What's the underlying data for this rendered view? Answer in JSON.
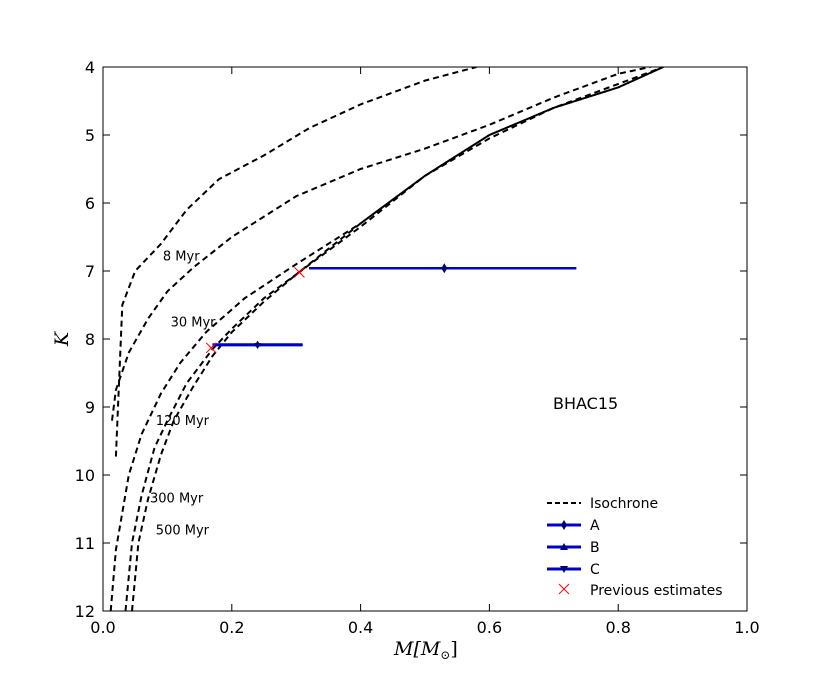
{
  "chart_data": {
    "type": "line",
    "xlabel": "M[M_⊙]",
    "xlabel_main": "M",
    "xlabel_sub": "[M",
    "xlabel_sun": "⊙",
    "xlabel_close": "]",
    "ylabel": "K",
    "xlim": [
      0.0,
      1.0
    ],
    "ylim": [
      12,
      4
    ],
    "y_inverted": true,
    "x_ticks": [
      0.0,
      0.2,
      0.4,
      0.6,
      0.8,
      1.0
    ],
    "x_tick_labels": [
      "0.0",
      "0.2",
      "0.4",
      "0.6",
      "0.8",
      "1.0"
    ],
    "y_ticks": [
      4,
      5,
      6,
      7,
      8,
      9,
      10,
      11,
      12
    ],
    "y_tick_labels": [
      "4",
      "5",
      "6",
      "7",
      "8",
      "9",
      "10",
      "11",
      "12"
    ],
    "model_label": "BHAC15",
    "isochrones": [
      {
        "name": "8 Myr",
        "label_at": [
          0.093,
          6.77
        ],
        "x": [
          0.02,
          0.03,
          0.05,
          0.09,
          0.13,
          0.18,
          0.25,
          0.32,
          0.4,
          0.5,
          0.58
        ],
        "y": [
          9.73,
          7.5,
          7.0,
          6.6,
          6.1,
          5.65,
          5.3,
          4.9,
          4.55,
          4.2,
          4.0
        ]
      },
      {
        "name": "30 Myr",
        "label_at": [
          0.105,
          7.74
        ],
        "x": [
          0.014,
          0.02,
          0.04,
          0.07,
          0.1,
          0.14,
          0.2,
          0.3,
          0.4,
          0.5,
          0.6,
          0.7,
          0.8,
          0.85
        ],
        "y": [
          9.2,
          8.75,
          8.2,
          7.7,
          7.3,
          6.95,
          6.5,
          5.9,
          5.5,
          5.2,
          4.85,
          4.45,
          4.1,
          4.0
        ]
      },
      {
        "name": "120 Myr",
        "label_at": [
          0.082,
          9.19
        ],
        "x": [
          0.012,
          0.02,
          0.04,
          0.06,
          0.09,
          0.12,
          0.16,
          0.22,
          0.3,
          0.4,
          0.5,
          0.6,
          0.7,
          0.8,
          0.87
        ],
        "y": [
          12.0,
          11.1,
          10.0,
          9.4,
          8.8,
          8.35,
          7.9,
          7.4,
          6.9,
          6.3,
          5.6,
          5.05,
          4.6,
          4.25,
          4.0
        ]
      },
      {
        "name": "300 Myr",
        "label_at": [
          0.073,
          10.33
        ],
        "x": [
          0.035,
          0.045,
          0.06,
          0.08,
          0.1,
          0.13,
          0.17,
          0.2,
          0.25,
          0.3,
          0.4,
          0.5,
          0.6,
          0.7,
          0.8,
          0.87
        ],
        "y": [
          12.0,
          11.0,
          10.3,
          9.6,
          9.2,
          8.65,
          8.15,
          7.85,
          7.4,
          7.05,
          6.3,
          5.6,
          5.0,
          4.6,
          4.3,
          4.0
        ]
      },
      {
        "name": "500 Myr",
        "label_at": [
          0.082,
          10.8
        ],
        "x": [
          0.045,
          0.055,
          0.07,
          0.09,
          0.11,
          0.14,
          0.17,
          0.2,
          0.25,
          0.3,
          0.4,
          0.5,
          0.6,
          0.7,
          0.8,
          0.87
        ],
        "y": [
          12.0,
          11.0,
          10.35,
          9.7,
          9.2,
          8.7,
          8.25,
          7.9,
          7.45,
          7.05,
          6.35,
          5.6,
          5.0,
          4.6,
          4.3,
          4.0
        ]
      }
    ],
    "measurements": [
      {
        "name": "A",
        "marker": "diamond",
        "x": 0.53,
        "y": 6.96,
        "xmin": 0.32,
        "xmax": 0.735
      },
      {
        "name": "B",
        "marker": "triangle-up",
        "x": 0.24,
        "y": 8.08,
        "xmin": 0.17,
        "xmax": 0.31
      },
      {
        "name": "C",
        "marker": "triangle-down",
        "x": 0.24,
        "y": 8.09,
        "xmin": 0.17,
        "xmax": 0.31
      }
    ],
    "previous_estimates": [
      {
        "x": 0.305,
        "y": 7.02
      },
      {
        "x": 0.168,
        "y": 8.13
      }
    ],
    "legend": {
      "position": "lower-right",
      "entries": [
        "Isochrone",
        "A",
        "B",
        "C",
        "Previous estimates"
      ]
    },
    "colors": {
      "isochrone": "#000000",
      "measurement": "#0000cc",
      "previous": "#ff0000"
    }
  }
}
